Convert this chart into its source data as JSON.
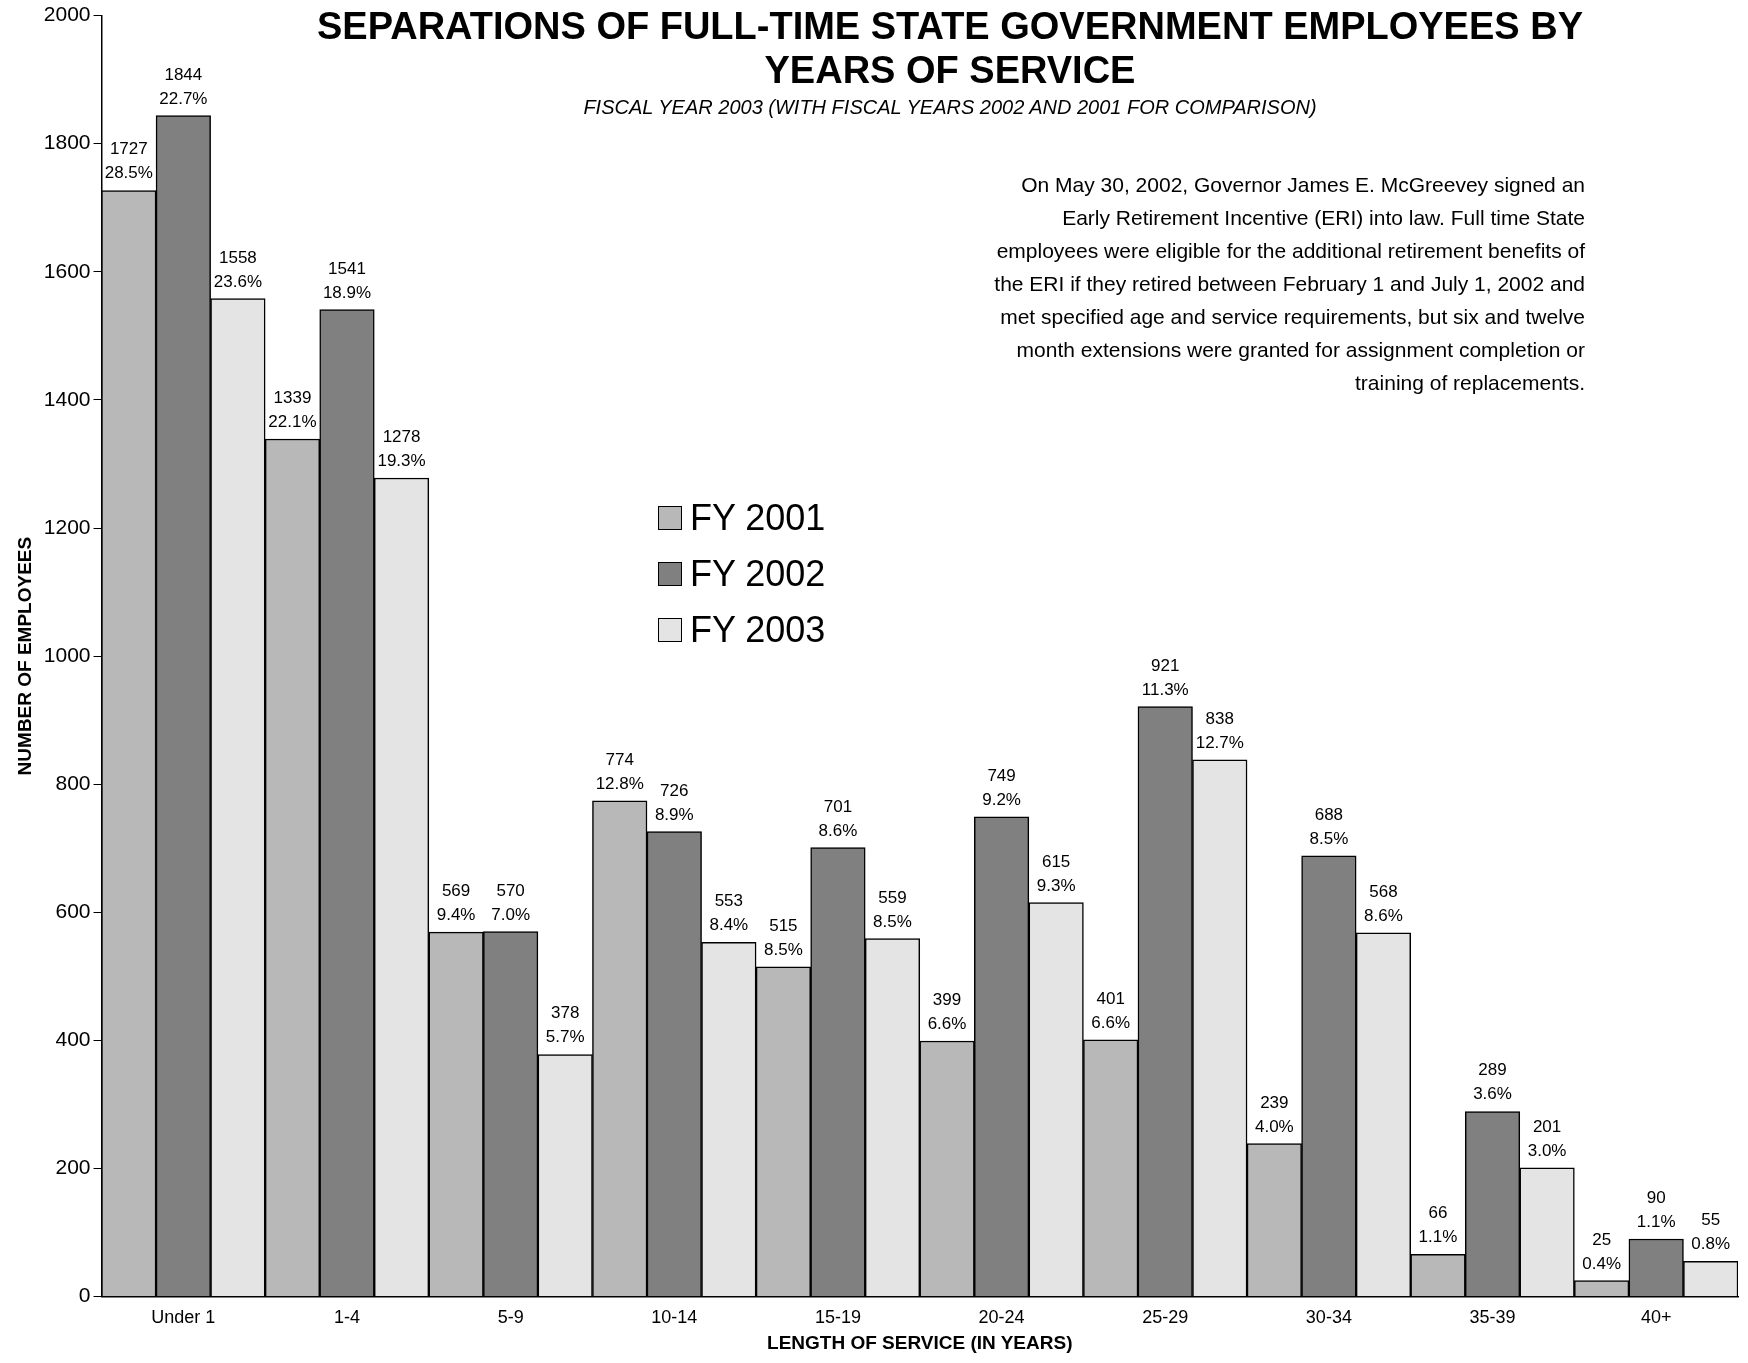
{
  "chart_data": {
    "type": "bar",
    "title": "SEPARATIONS OF FULL-TIME STATE GOVERNMENT EMPLOYEES BY YEARS OF SERVICE",
    "subtitle": "FISCAL YEAR 2003 (WITH FISCAL YEARS  2002 AND 2001 FOR COMPARISON)",
    "xlabel": "LENGTH OF SERVICE (IN YEARS)",
    "ylabel": "NUMBER OF EMPLOYEES",
    "categories": [
      "Under 1",
      "1-4",
      "5-9",
      "10-14",
      "15-19",
      "20-24",
      "25-29",
      "30-34",
      "35-39",
      "40+"
    ],
    "series": [
      {
        "name": "FY 2001",
        "color": "#b8b8b8",
        "values": [
          1727,
          1339,
          569,
          774,
          515,
          399,
          401,
          239,
          66,
          25
        ],
        "value_labels": [
          "1727\n28.5%",
          "1339\n22.1%",
          "569\n9.4%",
          "774\n12.8%",
          "515\n8.5%",
          "399\n6.6%",
          "401\n6.6%",
          "239\n4.0%",
          "66\n1.1%",
          "25\n0.4%"
        ]
      },
      {
        "name": "FY 2002",
        "color": "#808080",
        "values": [
          1844,
          1541,
          570,
          726,
          701,
          749,
          921,
          688,
          289,
          90
        ],
        "value_labels": [
          "1844\n22.7%",
          "1541\n18.9%",
          "570\n7.0%",
          "726\n8.9%",
          "701\n8.6%",
          "749\n9.2%",
          "921\n11.3%",
          "688\n8.5%",
          "289\n3.6%",
          "90\n1.1%"
        ]
      },
      {
        "name": "FY 2003",
        "color": "#e4e4e4",
        "values": [
          1558,
          1278,
          378,
          553,
          559,
          615,
          838,
          568,
          201,
          55
        ],
        "value_labels": [
          "1558\n23.6%",
          "1278\n19.3%",
          "378\n5.7%",
          "553\n8.4%",
          "559\n8.5%",
          "615\n9.3%",
          "838\n12.7%",
          "568\n8.6%",
          "201\n3.0%",
          "55\n0.8%"
        ]
      }
    ],
    "ylim": [
      0,
      2000
    ],
    "yticks": [
      0,
      200,
      400,
      600,
      800,
      1000,
      1200,
      1400,
      1600,
      1800,
      2000
    ],
    "grid": false,
    "legend": "center",
    "annotations": [
      "On May 30, 2002, Governor James E. McGreevey signed an Early Retirement Incentive (ERI) into law. Full time State employees were eligible for the additional retirement benefits of the ERI if they retired between February 1 and July 1, 2002 and met specified age and service requirements, but six and twelve month extensions were granted for assignment completion or training of replacements."
    ]
  }
}
